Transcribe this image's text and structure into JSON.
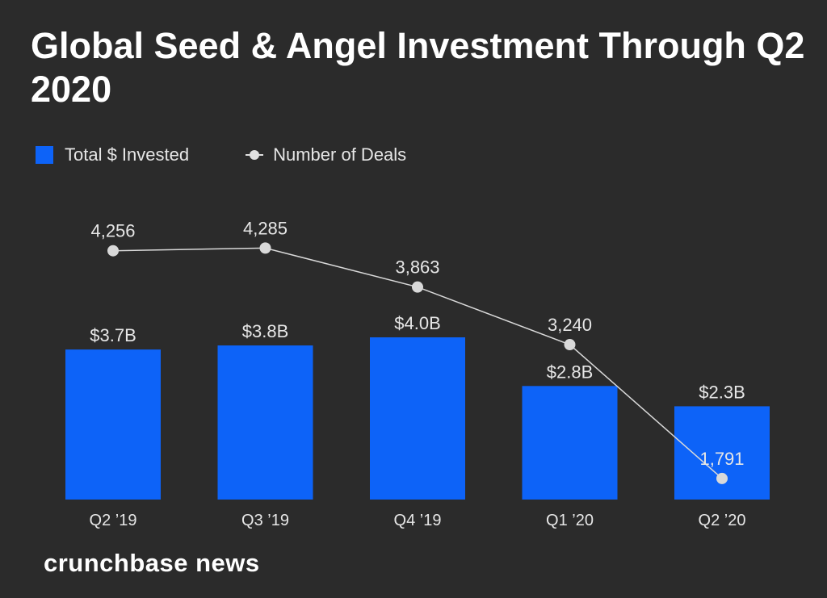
{
  "title": "Global Seed & Angel Investment Through Q2 2020",
  "brand": "crunchbase news",
  "colors": {
    "background": "#2b2b2b",
    "bar": "#0d63f8",
    "line": "#d9d9d9",
    "text": "#e6e6e6"
  },
  "legend": {
    "bars_label": "Total $ Invested",
    "line_label": "Number of Deals"
  },
  "chart_data": {
    "type": "bar",
    "title": "Global Seed & Angel Investment Through Q2 2020",
    "categories": [
      "Q2 ’19",
      "Q3 ’19",
      "Q4 ’19",
      "Q1 ’20",
      "Q2 ’20"
    ],
    "series": [
      {
        "name": "Total $ Invested",
        "type": "bar",
        "values": [
          3.7,
          3.8,
          4.0,
          2.8,
          2.3
        ],
        "labels": [
          "$3.7B",
          "$3.8B",
          "$4.0B",
          "$2.8B",
          "$2.3B"
        ]
      },
      {
        "name": "Number of Deals",
        "type": "line",
        "values": [
          4256,
          4285,
          3863,
          3240,
          1791
        ],
        "labels": [
          "4,256",
          "4,285",
          "3,863",
          "3,240",
          "1,791"
        ]
      }
    ],
    "xlabel": "",
    "ylabel": "",
    "grid": false,
    "legend_position": "top-left"
  }
}
